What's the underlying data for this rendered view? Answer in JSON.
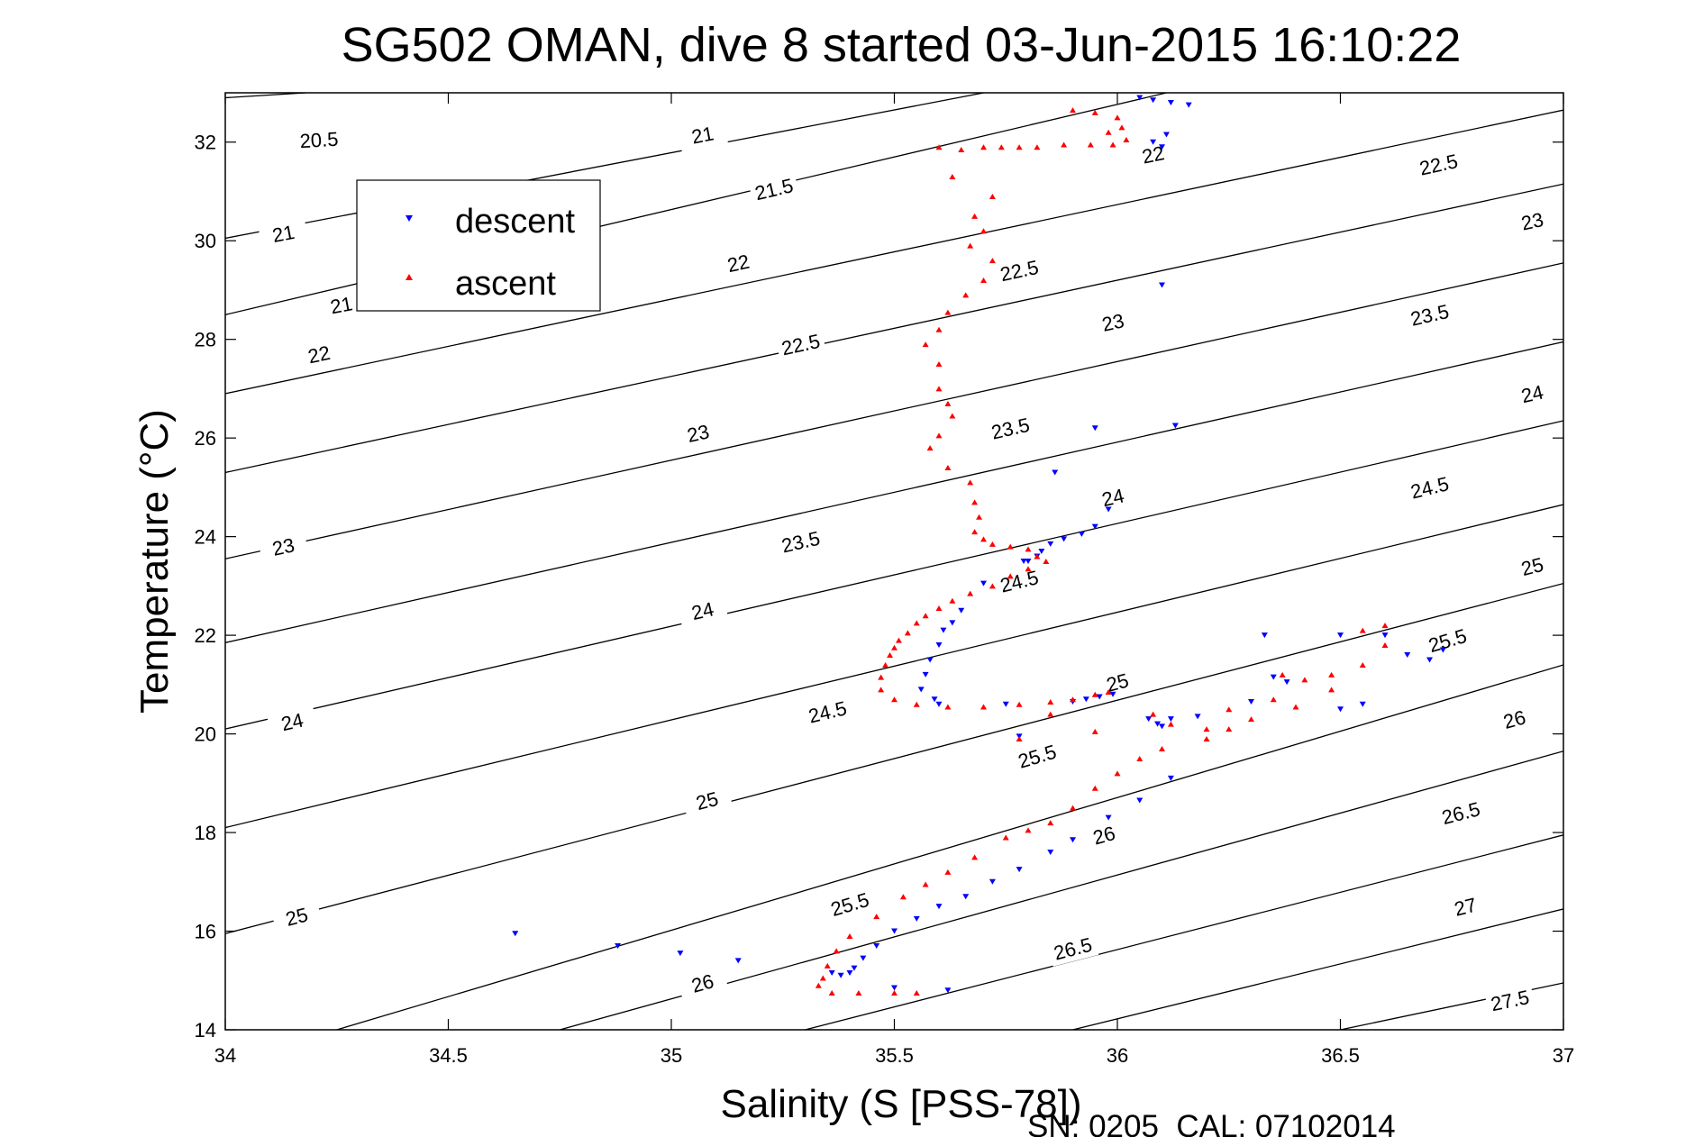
{
  "chart_data": {
    "type": "scatter",
    "title": "SG502 OMAN, dive 8 started 03-Jun-2015 16:10:22",
    "xlabel": "Salinity (S [PSS-78])",
    "ylabel": "Temperature (°C)",
    "footer": "SN: 0205  CAL: 07102014",
    "xlim": [
      34,
      37
    ],
    "ylim": [
      14,
      33
    ],
    "xticks": [
      34,
      34.5,
      35,
      35.5,
      36,
      36.5,
      37
    ],
    "xtick_labels": [
      "34",
      "34.5",
      "35",
      "35.5",
      "36",
      "36.5",
      "37"
    ],
    "yticks": [
      14,
      16,
      18,
      20,
      22,
      24,
      26,
      28,
      30,
      32
    ],
    "ytick_labels": [
      "14",
      "16",
      "18",
      "20",
      "22",
      "24",
      "26",
      "28",
      "30",
      "32"
    ],
    "legend_position": "top-left",
    "legend": [
      {
        "label": "descent",
        "color": "#0000ff",
        "marker": "triangle-down"
      },
      {
        "label": "ascent",
        "color": "#ff0000",
        "marker": "triangle-up"
      }
    ],
    "density_contours": [
      {
        "level": 20.5,
        "start": [
          34.0,
          32.9
        ],
        "end": [
          34.18,
          33.0
        ],
        "labels": [
          [
            34.21,
            32.05
          ]
        ]
      },
      {
        "level": 21,
        "start": [
          34.0,
          30.05
        ],
        "end": [
          35.7,
          33.0
        ],
        "labels": [
          [
            34.13,
            30.15
          ],
          [
            34.26,
            28.7
          ],
          [
            35.07,
            32.15
          ]
        ]
      },
      {
        "level": 21.5,
        "start": [
          34.0,
          28.5
        ],
        "end": [
          36.11,
          33.0
        ],
        "labels": [
          [
            35.23,
            31.05
          ]
        ]
      },
      {
        "level": 22,
        "start": [
          34.0,
          26.9
        ],
        "end": [
          37.0,
          32.65
        ],
        "labels": [
          [
            34.21,
            27.7
          ],
          [
            35.15,
            29.55
          ],
          [
            36.08,
            31.75
          ]
        ]
      },
      {
        "level": 22.5,
        "start": [
          34.0,
          25.3
        ],
        "end": [
          37.0,
          31.15
        ],
        "labels": [
          [
            35.29,
            27.9
          ],
          [
            35.78,
            29.4
          ],
          [
            36.72,
            31.55
          ]
        ]
      },
      {
        "level": 23,
        "start": [
          34.0,
          23.55
        ],
        "end": [
          37.0,
          29.55
        ],
        "labels": [
          [
            34.13,
            23.8
          ],
          [
            35.06,
            26.1
          ],
          [
            35.99,
            28.35
          ],
          [
            36.93,
            30.4
          ]
        ]
      },
      {
        "level": 23.5,
        "start": [
          34.0,
          21.85
        ],
        "end": [
          37.0,
          27.95
        ],
        "labels": [
          [
            35.29,
            23.9
          ],
          [
            35.76,
            26.2
          ],
          [
            36.7,
            28.5
          ]
        ]
      },
      {
        "level": 24,
        "start": [
          34.0,
          20.1
        ],
        "end": [
          37.0,
          26.35
        ],
        "labels": [
          [
            34.15,
            20.25
          ],
          [
            35.07,
            22.5
          ],
          [
            35.99,
            24.8
          ],
          [
            36.93,
            26.9
          ]
        ]
      },
      {
        "level": 24.5,
        "start": [
          34.0,
          18.1
        ],
        "end": [
          37.0,
          24.65
        ],
        "labels": [
          [
            35.35,
            20.45
          ],
          [
            35.78,
            23.1
          ],
          [
            36.7,
            25.0
          ]
        ]
      },
      {
        "level": 25,
        "start": [
          34.0,
          15.95
        ],
        "end": [
          37.0,
          23.05
        ],
        "labels": [
          [
            34.16,
            16.3
          ],
          [
            35.08,
            18.65
          ],
          [
            36.0,
            21.05
          ],
          [
            36.93,
            23.4
          ]
        ]
      },
      {
        "level": 25.5,
        "start": [
          34.25,
          14.0
        ],
        "end": [
          37.0,
          21.4
        ],
        "labels": [
          [
            35.4,
            16.55
          ],
          [
            35.82,
            19.55
          ],
          [
            36.74,
            21.9
          ]
        ]
      },
      {
        "level": 26,
        "start": [
          34.75,
          14.0
        ],
        "end": [
          37.0,
          19.65
        ],
        "labels": [
          [
            35.07,
            14.95
          ],
          [
            35.97,
            17.95
          ],
          [
            36.89,
            20.3
          ]
        ]
      },
      {
        "level": 26.5,
        "start": [
          35.3,
          14.0
        ],
        "end": [
          37.0,
          17.95
        ],
        "labels": [
          [
            35.9,
            15.65
          ],
          [
            36.77,
            18.4
          ]
        ]
      },
      {
        "level": 27,
        "start": [
          35.9,
          14.0
        ],
        "end": [
          37.0,
          16.45
        ],
        "labels": [
          [
            36.78,
            16.5
          ]
        ]
      },
      {
        "level": 27.5,
        "start": [
          36.5,
          14.0
        ],
        "end": [
          37.0,
          14.95
        ],
        "labels": [
          [
            36.88,
            14.6
          ]
        ]
      }
    ],
    "series": [
      {
        "name": "descent",
        "color": "#0000ff",
        "marker": "triangle-down",
        "points": [
          [
            36.05,
            32.9
          ],
          [
            36.08,
            32.85
          ],
          [
            36.12,
            32.8
          ],
          [
            36.16,
            32.75
          ],
          [
            36.11,
            32.15
          ],
          [
            36.08,
            32.0
          ],
          [
            36.1,
            31.9
          ],
          [
            36.1,
            29.1
          ],
          [
            36.13,
            26.25
          ],
          [
            35.95,
            26.2
          ],
          [
            35.86,
            25.3
          ],
          [
            35.98,
            24.55
          ],
          [
            35.95,
            24.2
          ],
          [
            35.92,
            24.05
          ],
          [
            35.88,
            23.95
          ],
          [
            35.85,
            23.85
          ],
          [
            35.83,
            23.7
          ],
          [
            35.82,
            23.6
          ],
          [
            35.8,
            23.5
          ],
          [
            35.79,
            23.5
          ],
          [
            35.7,
            23.05
          ],
          [
            35.65,
            22.5
          ],
          [
            35.63,
            22.25
          ],
          [
            35.61,
            22.1
          ],
          [
            35.6,
            21.8
          ],
          [
            35.58,
            21.5
          ],
          [
            35.57,
            21.2
          ],
          [
            35.56,
            20.9
          ],
          [
            35.59,
            20.7
          ],
          [
            35.6,
            20.6
          ],
          [
            35.75,
            20.6
          ],
          [
            35.9,
            20.65
          ],
          [
            35.93,
            20.7
          ],
          [
            35.96,
            20.75
          ],
          [
            35.99,
            20.8
          ],
          [
            35.78,
            19.95
          ],
          [
            36.07,
            20.3
          ],
          [
            36.09,
            20.2
          ],
          [
            36.1,
            20.15
          ],
          [
            36.12,
            20.3
          ],
          [
            36.18,
            20.35
          ],
          [
            36.3,
            20.65
          ],
          [
            36.35,
            21.15
          ],
          [
            36.33,
            22.0
          ],
          [
            36.38,
            21.05
          ],
          [
            36.5,
            20.5
          ],
          [
            36.55,
            20.6
          ],
          [
            36.5,
            22.0
          ],
          [
            36.6,
            22.0
          ],
          [
            36.65,
            21.6
          ],
          [
            36.7,
            21.5
          ],
          [
            36.73,
            21.7
          ],
          [
            36.12,
            19.1
          ],
          [
            36.05,
            18.65
          ],
          [
            35.98,
            18.3
          ],
          [
            35.9,
            17.85
          ],
          [
            35.85,
            17.6
          ],
          [
            35.78,
            17.25
          ],
          [
            35.72,
            17.0
          ],
          [
            35.66,
            16.7
          ],
          [
            35.6,
            16.5
          ],
          [
            35.55,
            16.25
          ],
          [
            35.5,
            16.0
          ],
          [
            35.46,
            15.7
          ],
          [
            35.43,
            15.45
          ],
          [
            35.41,
            15.25
          ],
          [
            35.4,
            15.15
          ],
          [
            35.38,
            15.1
          ],
          [
            35.36,
            15.15
          ],
          [
            35.5,
            14.85
          ],
          [
            35.62,
            14.8
          ],
          [
            34.65,
            15.95
          ],
          [
            34.88,
            15.7
          ],
          [
            35.02,
            15.55
          ],
          [
            35.15,
            15.4
          ]
        ]
      },
      {
        "name": "ascent",
        "color": "#ff0000",
        "marker": "triangle-up",
        "points": [
          [
            35.9,
            32.65
          ],
          [
            35.95,
            32.6
          ],
          [
            35.98,
            32.2
          ],
          [
            36.0,
            32.5
          ],
          [
            36.01,
            32.3
          ],
          [
            36.02,
            32.05
          ],
          [
            35.99,
            31.95
          ],
          [
            35.94,
            31.95
          ],
          [
            35.88,
            31.95
          ],
          [
            35.82,
            31.9
          ],
          [
            35.78,
            31.9
          ],
          [
            35.74,
            31.9
          ],
          [
            35.7,
            31.9
          ],
          [
            35.65,
            31.85
          ],
          [
            35.6,
            31.9
          ],
          [
            35.63,
            31.3
          ],
          [
            35.72,
            30.9
          ],
          [
            35.68,
            30.5
          ],
          [
            35.7,
            30.2
          ],
          [
            35.67,
            29.9
          ],
          [
            35.72,
            29.6
          ],
          [
            35.7,
            29.2
          ],
          [
            35.66,
            28.9
          ],
          [
            35.62,
            28.55
          ],
          [
            35.6,
            28.2
          ],
          [
            35.57,
            27.9
          ],
          [
            35.6,
            27.5
          ],
          [
            35.6,
            27.0
          ],
          [
            35.62,
            26.7
          ],
          [
            35.63,
            26.45
          ],
          [
            35.6,
            26.05
          ],
          [
            35.58,
            25.8
          ],
          [
            35.62,
            25.4
          ],
          [
            35.67,
            25.1
          ],
          [
            35.68,
            24.7
          ],
          [
            35.69,
            24.4
          ],
          [
            35.68,
            24.1
          ],
          [
            35.7,
            23.95
          ],
          [
            35.72,
            23.85
          ],
          [
            35.76,
            23.8
          ],
          [
            35.8,
            23.75
          ],
          [
            35.82,
            23.6
          ],
          [
            35.84,
            23.5
          ],
          [
            35.8,
            23.35
          ],
          [
            35.76,
            23.2
          ],
          [
            35.72,
            23.0
          ],
          [
            35.67,
            22.85
          ],
          [
            35.63,
            22.7
          ],
          [
            35.6,
            22.55
          ],
          [
            35.57,
            22.4
          ],
          [
            35.55,
            22.25
          ],
          [
            35.53,
            22.05
          ],
          [
            35.51,
            21.9
          ],
          [
            35.5,
            21.75
          ],
          [
            35.49,
            21.6
          ],
          [
            35.48,
            21.4
          ],
          [
            35.47,
            21.15
          ],
          [
            35.47,
            20.9
          ],
          [
            35.5,
            20.7
          ],
          [
            35.55,
            20.6
          ],
          [
            35.62,
            20.55
          ],
          [
            35.7,
            20.55
          ],
          [
            35.78,
            20.6
          ],
          [
            35.85,
            20.65
          ],
          [
            35.9,
            20.7
          ],
          [
            35.95,
            20.8
          ],
          [
            35.98,
            20.85
          ],
          [
            35.95,
            20.05
          ],
          [
            35.78,
            19.9
          ],
          [
            35.85,
            20.4
          ],
          [
            36.08,
            20.4
          ],
          [
            36.12,
            20.2
          ],
          [
            36.2,
            20.1
          ],
          [
            36.25,
            20.5
          ],
          [
            36.35,
            20.7
          ],
          [
            36.37,
            21.2
          ],
          [
            36.42,
            21.1
          ],
          [
            36.48,
            21.2
          ],
          [
            36.55,
            21.4
          ],
          [
            36.6,
            21.8
          ],
          [
            36.6,
            22.2
          ],
          [
            36.55,
            22.1
          ],
          [
            36.48,
            20.9
          ],
          [
            36.4,
            20.55
          ],
          [
            36.3,
            20.3
          ],
          [
            36.25,
            20.1
          ],
          [
            36.2,
            19.9
          ],
          [
            36.1,
            19.7
          ],
          [
            36.05,
            19.5
          ],
          [
            36.0,
            19.2
          ],
          [
            35.95,
            18.9
          ],
          [
            35.9,
            18.5
          ],
          [
            35.85,
            18.2
          ],
          [
            35.8,
            18.05
          ],
          [
            35.75,
            17.9
          ],
          [
            35.68,
            17.5
          ],
          [
            35.62,
            17.2
          ],
          [
            35.57,
            16.95
          ],
          [
            35.52,
            16.7
          ],
          [
            35.46,
            16.3
          ],
          [
            35.4,
            15.9
          ],
          [
            35.37,
            15.6
          ],
          [
            35.35,
            15.3
          ],
          [
            35.34,
            15.05
          ],
          [
            35.33,
            14.9
          ],
          [
            35.36,
            14.75
          ],
          [
            35.42,
            14.75
          ],
          [
            35.5,
            14.75
          ],
          [
            35.55,
            14.75
          ]
        ]
      }
    ]
  }
}
